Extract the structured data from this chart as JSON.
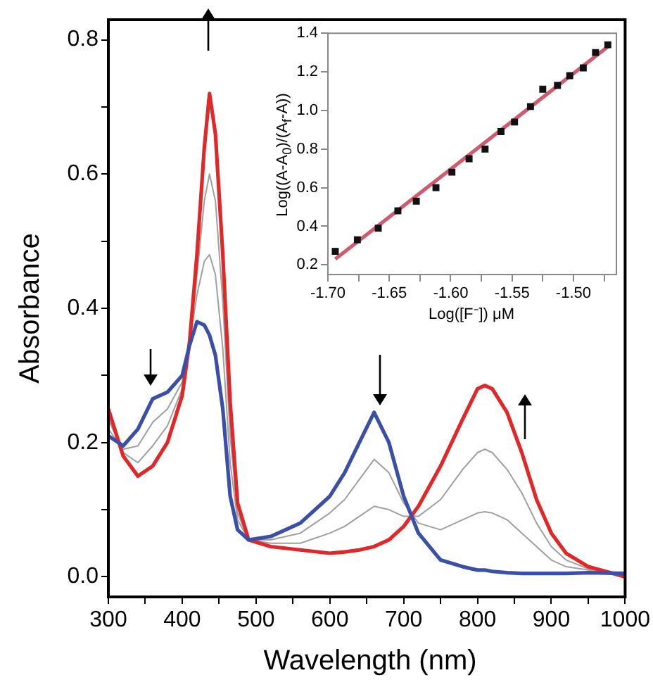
{
  "chart_data": [
    {
      "type": "line",
      "xlabel": "Wavelength (nm)",
      "ylabel": "Absorbance",
      "x": [
        300,
        320,
        340,
        360,
        380,
        400,
        410,
        420,
        430,
        437,
        445,
        455,
        465,
        475,
        490,
        520,
        560,
        600,
        620,
        640,
        660,
        680,
        700,
        720,
        750,
        780,
        800,
        810,
        820,
        840,
        860,
        880,
        900,
        920,
        950,
        1000
      ],
      "series": [
        {
          "color": "#3a4fa8",
          "values": [
            0.21,
            0.195,
            0.22,
            0.265,
            0.275,
            0.3,
            0.345,
            0.38,
            0.375,
            0.36,
            0.33,
            0.25,
            0.12,
            0.07,
            0.055,
            0.06,
            0.08,
            0.12,
            0.155,
            0.2,
            0.245,
            0.2,
            0.12,
            0.065,
            0.025,
            0.015,
            0.01,
            0.01,
            0.008,
            0.006,
            0.005,
            0.005,
            0.005,
            0.005,
            0.006,
            0.005
          ]
        },
        {
          "color": "#a0a0a0",
          "values": [
            0.22,
            0.19,
            0.195,
            0.23,
            0.25,
            0.29,
            0.35,
            0.42,
            0.47,
            0.48,
            0.45,
            0.34,
            0.17,
            0.085,
            0.055,
            0.055,
            0.065,
            0.095,
            0.115,
            0.145,
            0.175,
            0.155,
            0.11,
            0.08,
            0.07,
            0.085,
            0.095,
            0.097,
            0.095,
            0.085,
            0.065,
            0.045,
            0.025,
            0.015,
            0.01,
            0.005
          ]
        },
        {
          "color": "#a0a0a0",
          "values": [
            0.235,
            0.185,
            0.17,
            0.195,
            0.225,
            0.28,
            0.35,
            0.45,
            0.56,
            0.6,
            0.56,
            0.41,
            0.21,
            0.095,
            0.055,
            0.05,
            0.05,
            0.065,
            0.075,
            0.09,
            0.105,
            0.1,
            0.09,
            0.09,
            0.115,
            0.16,
            0.185,
            0.19,
            0.185,
            0.16,
            0.125,
            0.08,
            0.045,
            0.025,
            0.012,
            0.003
          ]
        },
        {
          "color": "#e02828",
          "values": [
            0.25,
            0.18,
            0.15,
            0.165,
            0.2,
            0.27,
            0.35,
            0.48,
            0.64,
            0.72,
            0.66,
            0.48,
            0.26,
            0.11,
            0.055,
            0.045,
            0.04,
            0.035,
            0.037,
            0.04,
            0.045,
            0.055,
            0.075,
            0.105,
            0.165,
            0.235,
            0.28,
            0.285,
            0.28,
            0.245,
            0.185,
            0.115,
            0.065,
            0.035,
            0.015,
            0
          ]
        }
      ],
      "xlim": [
        300,
        1000
      ],
      "xticks": [
        300,
        {
          "value": 350,
          "label": null
        },
        400,
        {
          "value": 450,
          "label": null
        },
        500,
        {
          "value": 550,
          "label": null
        },
        600,
        {
          "value": 650,
          "label": null
        },
        700,
        {
          "value": 750,
          "label": null
        },
        800,
        {
          "value": 850,
          "label": null
        },
        900,
        {
          "value": 950,
          "label": null
        },
        1000
      ],
      "ylim": [
        -0.03,
        0.83
      ],
      "yticks": [
        {
          "value": 0,
          "label": "0.0"
        },
        {
          "value": 0.1,
          "label": null
        },
        0.2,
        {
          "value": 0.3,
          "label": null
        },
        0.4,
        {
          "value": 0.5,
          "label": null
        },
        0.6,
        {
          "value": 0.7,
          "label": null
        },
        0.8
      ]
    },
    {
      "type": "scatter",
      "xlabel": "Log([F⁻]) μM",
      "ylabel": "Log((A-A$_{0}$)/(A$_{f}$-A))",
      "series": [
        {
          "color": "#111111",
          "marker": "square",
          "x": [
            -1.694,
            -1.676,
            -1.659,
            -1.643,
            -1.628,
            -1.612,
            -1.599,
            -1.585,
            -1.572,
            -1.559,
            -1.548,
            -1.535,
            -1.525,
            -1.513,
            -1.503,
            -1.492,
            -1.482,
            -1.472
          ],
          "values": [
            0.27,
            0.33,
            0.39,
            0.48,
            0.53,
            0.6,
            0.68,
            0.75,
            0.8,
            0.89,
            0.94,
            1.02,
            1.11,
            1.13,
            1.18,
            1.22,
            1.3,
            1.34
          ]
        },
        {
          "type": "line",
          "color": "#d05a6e",
          "x": [
            -1.694,
            -1.471
          ],
          "values": [
            0.23,
            1.335
          ]
        }
      ],
      "xlim": [
        -1.7,
        -1.465
      ],
      "xticks": [
        {
          "value": -1.7,
          "label": "-1.70"
        },
        {
          "value": -1.675,
          "label": null
        },
        {
          "value": -1.65,
          "label": "-1.65"
        },
        {
          "value": -1.625,
          "label": null
        },
        {
          "value": -1.6,
          "label": "-1.60"
        },
        {
          "value": -1.575,
          "label": null
        },
        {
          "value": -1.55,
          "label": "-1.55"
        },
        {
          "value": -1.525,
          "label": null
        },
        {
          "value": -1.5,
          "label": "-1.50"
        },
        {
          "value": -1.475,
          "label": null
        }
      ],
      "ylim": [
        0.15,
        1.4
      ],
      "yticks": [
        0.2,
        0.4,
        0.6,
        0.8,
        {
          "value": 1,
          "label": "1.0"
        },
        1.2,
        1.4
      ]
    }
  ]
}
